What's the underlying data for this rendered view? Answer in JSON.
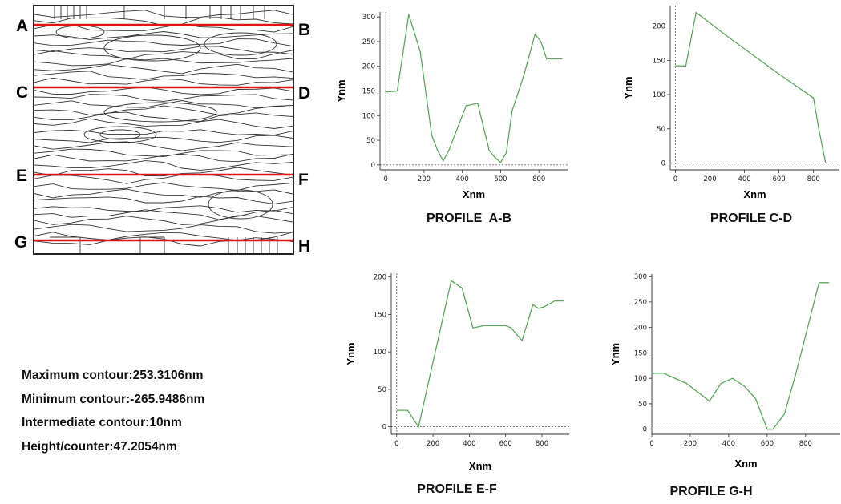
{
  "section_labels": [
    "A",
    "B",
    "C",
    "D",
    "E",
    "F",
    "G",
    "H"
  ],
  "stats": {
    "line1": "Maximum contour:253.3106nm",
    "line2": "Minimum contour:-265.9486nm",
    "line3": "Intermediate contour:10nm",
    "line4": "Height/counter:47.2054nm"
  },
  "colors": {
    "profile_line": "#5aa85a",
    "section_line": "#e01515",
    "contour_line": "#333333"
  },
  "chart_data": [
    {
      "type": "line",
      "title": "PROFILE  A-B",
      "xlabel": "Xnm",
      "ylabel": "Ynm",
      "xlim": [
        -30,
        950
      ],
      "ylim": [
        -10,
        310
      ],
      "xticks": [
        0,
        200,
        400,
        600,
        800
      ],
      "yticks": [
        0,
        50,
        100,
        150,
        200,
        250,
        300
      ],
      "grid": false,
      "x": [
        0,
        60,
        120,
        180,
        240,
        270,
        300,
        330,
        360,
        420,
        480,
        540,
        570,
        600,
        630,
        660,
        720,
        780,
        810,
        840,
        870,
        920
      ],
      "y": [
        148,
        150,
        305,
        230,
        60,
        30,
        8,
        30,
        60,
        120,
        125,
        30,
        15,
        5,
        25,
        110,
        180,
        265,
        250,
        215,
        215,
        215
      ]
    },
    {
      "type": "line",
      "title": "PROFILE C-D",
      "xlabel": "Xnm",
      "ylabel": "Ynm",
      "xlim": [
        -30,
        950
      ],
      "ylim": [
        -10,
        230
      ],
      "xticks": [
        0,
        200,
        400,
        600,
        800
      ],
      "yticks": [
        0,
        50,
        100,
        150,
        200
      ],
      "grid": false,
      "x": [
        0,
        60,
        120,
        300,
        600,
        800,
        830,
        870
      ],
      "y": [
        142,
        142,
        220,
        185,
        130,
        95,
        50,
        0
      ]
    },
    {
      "type": "line",
      "title": "PROFILE E-F",
      "xlabel": "Xnm",
      "ylabel": "Ynm",
      "xlim": [
        -30,
        950
      ],
      "ylim": [
        -10,
        205
      ],
      "xticks": [
        0,
        200,
        400,
        600,
        800
      ],
      "yticks": [
        0,
        50,
        100,
        150,
        200
      ],
      "grid": false,
      "x": [
        0,
        60,
        120,
        300,
        360,
        420,
        480,
        540,
        600,
        630,
        690,
        750,
        780,
        810,
        870,
        920
      ],
      "y": [
        22,
        22,
        0,
        195,
        185,
        132,
        135,
        135,
        135,
        132,
        115,
        163,
        158,
        160,
        168,
        168
      ]
    },
    {
      "type": "line",
      "title": "PROFILE G-H",
      "xlabel": "Xnm",
      "ylabel": "Ynm",
      "xlim": [
        0,
        980
      ],
      "ylim": [
        -10,
        305
      ],
      "xticks": [
        0,
        200,
        400,
        600,
        800
      ],
      "yticks": [
        0,
        50,
        100,
        150,
        200,
        250,
        300
      ],
      "grid": false,
      "x": [
        0,
        60,
        180,
        300,
        360,
        420,
        480,
        540,
        600,
        630,
        690,
        750,
        870,
        920
      ],
      "y": [
        110,
        110,
        90,
        55,
        90,
        100,
        85,
        60,
        0,
        0,
        30,
        110,
        288,
        288
      ]
    }
  ]
}
